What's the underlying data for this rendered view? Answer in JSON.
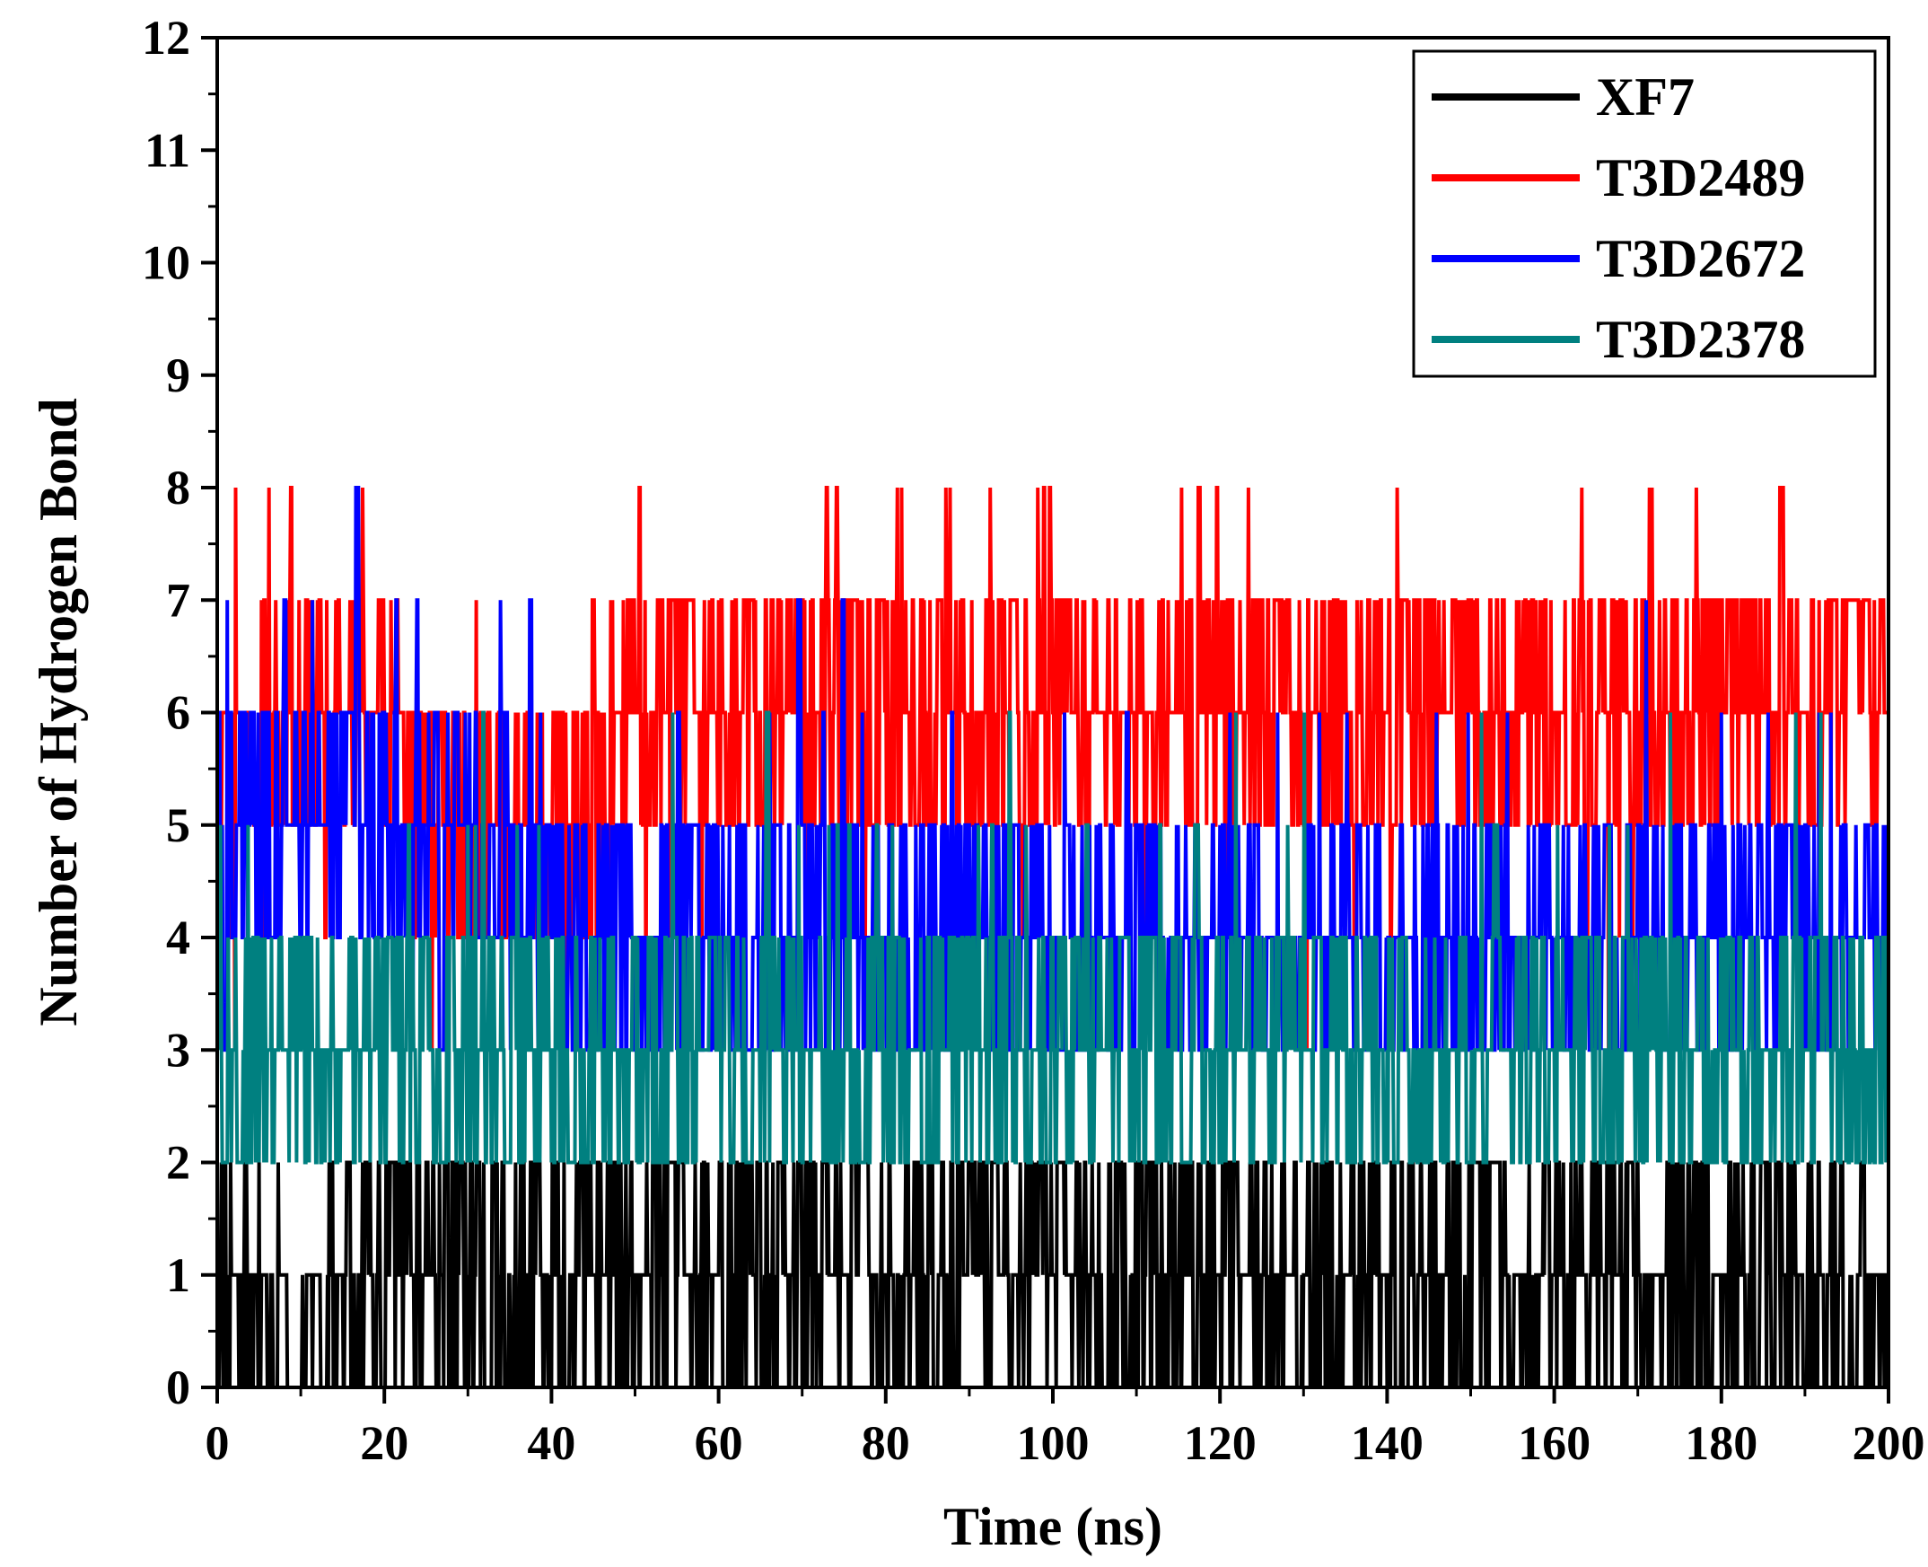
{
  "chart_data": {
    "type": "line",
    "title": "",
    "xlabel": "Time (ns)",
    "ylabel": "Number of Hydrogen Bond",
    "xlim": [
      0,
      200
    ],
    "ylim": [
      0,
      12
    ],
    "xticks": [
      0,
      20,
      40,
      60,
      80,
      100,
      120,
      140,
      160,
      180,
      200
    ],
    "xtick_labels": [
      "0",
      "20",
      "40",
      "60",
      "80",
      "100",
      "120",
      "140",
      "160",
      "180",
      "200"
    ],
    "yticks": [
      0,
      1,
      2,
      3,
      4,
      5,
      6,
      7,
      8,
      9,
      10,
      11,
      12
    ],
    "ytick_labels": [
      "0",
      "1",
      "2",
      "3",
      "4",
      "5",
      "6",
      "7",
      "8",
      "9",
      "10",
      "11",
      "12"
    ],
    "legend_position": "top-right",
    "grid": false,
    "series": [
      {
        "name": "XF7",
        "color": "#000000",
        "x": [
          0,
          10,
          20,
          30,
          40,
          50,
          60,
          70,
          80,
          90,
          100,
          110,
          120,
          130,
          140,
          150,
          160,
          170,
          180,
          190,
          200
        ],
        "values": [
          1,
          0,
          1,
          1,
          1,
          1,
          1,
          1,
          1,
          1,
          1,
          1,
          1,
          1,
          1,
          1,
          1,
          1,
          1,
          1,
          1
        ],
        "range_min": 0,
        "range_max": 2
      },
      {
        "name": "T3D2489",
        "color": "#ff0000",
        "x": [
          0,
          10,
          20,
          30,
          40,
          50,
          60,
          70,
          80,
          90,
          100,
          110,
          120,
          130,
          140,
          150,
          160,
          170,
          180,
          190,
          200
        ],
        "values": [
          5,
          6,
          6,
          5,
          5,
          6,
          6,
          6,
          6,
          6,
          6,
          6,
          6,
          6,
          6,
          6,
          6,
          6,
          6,
          6,
          6
        ],
        "range_min": 3,
        "range_max": 8
      },
      {
        "name": "T3D2672",
        "color": "#0000ff",
        "x": [
          0,
          10,
          20,
          30,
          40,
          50,
          60,
          70,
          80,
          90,
          100,
          110,
          120,
          130,
          140,
          150,
          160,
          170,
          180,
          190,
          200
        ],
        "values": [
          5,
          5,
          5,
          5,
          4,
          4,
          4,
          4,
          4,
          4,
          4,
          4,
          4,
          4,
          4,
          4,
          4,
          4,
          4,
          4,
          4
        ],
        "range_min": 3,
        "range_max": 8
      },
      {
        "name": "T3D2378",
        "color": "#008080",
        "x": [
          0,
          10,
          20,
          30,
          40,
          50,
          60,
          70,
          80,
          90,
          100,
          110,
          120,
          130,
          140,
          150,
          160,
          170,
          180,
          190,
          200
        ],
        "values": [
          3,
          3,
          3,
          3,
          3,
          3,
          3,
          3,
          3,
          3,
          3,
          3,
          3,
          3,
          3,
          3,
          3,
          3,
          3,
          3,
          3
        ],
        "range_min": 2,
        "range_max": 6
      }
    ]
  }
}
